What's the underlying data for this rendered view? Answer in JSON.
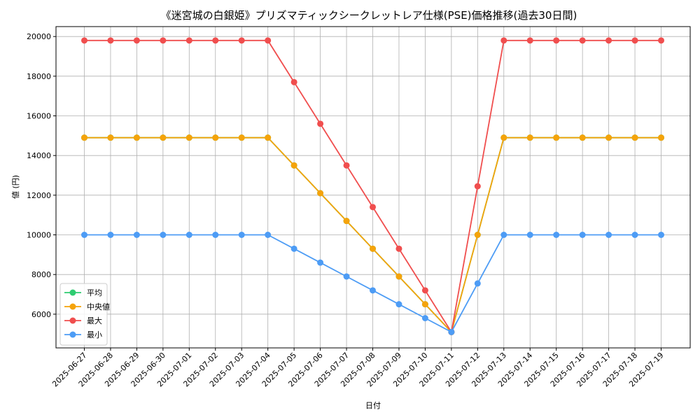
{
  "chart_data": {
    "type": "line",
    "title": "《迷宮城の白銀姫》プリズマティックシークレットレア仕様(PSE)価格推移(過去30日間)",
    "xlabel": "日付",
    "ylabel": "値 (円)",
    "ylim": [
      4300,
      20500
    ],
    "yticks": [
      6000,
      8000,
      10000,
      12000,
      14000,
      16000,
      18000,
      20000
    ],
    "grid": true,
    "legend_position": "lower-left",
    "categories": [
      "2025-06-27",
      "2025-06-28",
      "2025-06-29",
      "2025-06-30",
      "2025-07-01",
      "2025-07-02",
      "2025-07-03",
      "2025-07-04",
      "2025-07-05",
      "2025-07-06",
      "2025-07-07",
      "2025-07-08",
      "2025-07-09",
      "2025-07-10",
      "2025-07-11",
      "2025-07-12",
      "2025-07-13",
      "2025-07-14",
      "2025-07-15",
      "2025-07-16",
      "2025-07-17",
      "2025-07-18",
      "2025-07-19"
    ],
    "series": [
      {
        "name": "平均",
        "color": "#2ecc71",
        "values": [
          14900,
          14900,
          14900,
          14900,
          14900,
          14900,
          14900,
          14900,
          13500,
          12100,
          10700,
          9300,
          7900,
          6500,
          5100,
          10000,
          14900,
          14900,
          14900,
          14900,
          14900,
          14900,
          14900
        ]
      },
      {
        "name": "中央値",
        "color": "#f5a30a",
        "values": [
          14900,
          14900,
          14900,
          14900,
          14900,
          14900,
          14900,
          14900,
          13500,
          12100,
          10700,
          9300,
          7900,
          6500,
          5100,
          10000,
          14900,
          14900,
          14900,
          14900,
          14900,
          14900,
          14900
        ]
      },
      {
        "name": "最大",
        "color": "#f04e4e",
        "values": [
          19800,
          19800,
          19800,
          19800,
          19800,
          19800,
          19800,
          19800,
          17700,
          15600,
          13500,
          11400,
          9300,
          7200,
          5100,
          12450,
          19800,
          19800,
          19800,
          19800,
          19800,
          19800,
          19800
        ]
      },
      {
        "name": "最小",
        "color": "#4d9cf5",
        "values": [
          10000,
          10000,
          10000,
          10000,
          10000,
          10000,
          10000,
          10000,
          9300,
          8600,
          7900,
          7200,
          6500,
          5800,
          5100,
          7550,
          10000,
          10000,
          10000,
          10000,
          10000,
          10000,
          10000
        ]
      }
    ]
  }
}
